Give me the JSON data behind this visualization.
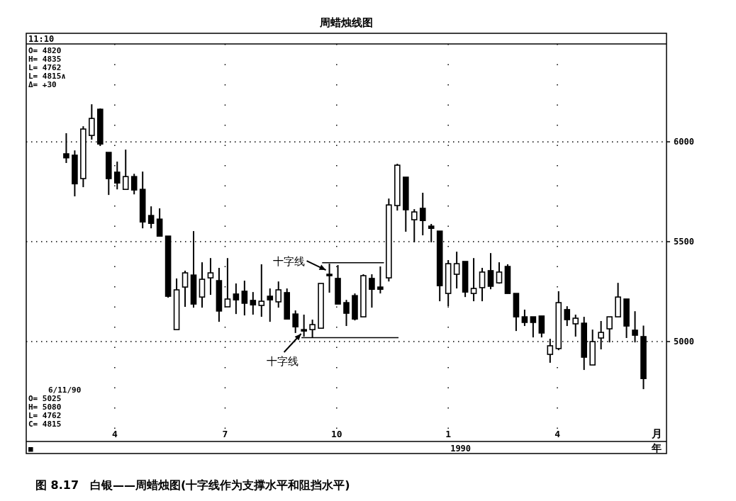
{
  "chart_data": {
    "type": "candlestick",
    "title": "周蜡烛线图",
    "xlabel": "月",
    "xlim": [
      "1989-01-18",
      "1990-06-30"
    ],
    "xticks": [
      {
        "value": "1989-04-01",
        "label": "4"
      },
      {
        "value": "1989-07-01",
        "label": "7"
      },
      {
        "value": "1989-10-01",
        "label": "10"
      },
      {
        "value": "1990-01-01",
        "label": "1"
      },
      {
        "value": "1990-04-01",
        "label": "4"
      }
    ],
    "ylim": [
      4500,
      6490
    ],
    "yticks": [
      5000,
      5500,
      6000
    ],
    "grid": true,
    "series": [
      {
        "color": "#000000",
        "x": [
          "1989-02-20",
          "1989-02-27",
          "1989-03-06",
          "1989-03-13",
          "1989-03-20",
          "1989-03-27",
          "1989-04-03",
          "1989-04-10",
          "1989-04-17",
          "1989-04-24",
          "1989-05-01",
          "1989-05-08",
          "1989-05-15",
          "1989-05-22",
          "1989-05-29",
          "1989-06-05",
          "1989-06-12",
          "1989-06-19",
          "1989-06-26",
          "1989-07-03",
          "1989-07-10",
          "1989-07-17",
          "1989-07-24",
          "1989-07-31",
          "1989-08-07",
          "1989-08-14",
          "1989-08-21",
          "1989-08-28",
          "1989-09-04",
          "1989-09-11",
          "1989-09-18",
          "1989-09-25",
          "1989-10-02",
          "1989-10-09",
          "1989-10-16",
          "1989-10-23",
          "1989-10-30",
          "1989-11-06",
          "1989-11-13",
          "1989-11-20",
          "1989-11-27",
          "1989-12-04",
          "1989-12-11",
          "1989-12-18",
          "1989-12-25",
          "1990-01-01",
          "1990-01-08",
          "1990-01-15",
          "1990-01-22",
          "1990-01-29",
          "1990-02-05",
          "1990-02-12",
          "1990-02-19",
          "1990-02-26",
          "1990-03-05",
          "1990-03-12",
          "1990-03-19",
          "1990-03-26",
          "1990-04-02",
          "1990-04-09",
          "1990-04-16",
          "1990-04-23",
          "1990-04-30",
          "1990-05-07",
          "1990-05-14",
          "1990-05-21",
          "1990-05-28",
          "1990-06-04",
          "1990-06-11"
        ],
        "ohlc": [
          [
            5940,
            6043,
            5894,
            5920
          ],
          [
            5933,
            5957,
            5727,
            5790
          ],
          [
            5816,
            6078,
            5773,
            6064
          ],
          [
            6032,
            6188,
            6011,
            6117
          ],
          [
            6163,
            6167,
            5979,
            5989
          ],
          [
            5947,
            5947,
            5734,
            5816
          ],
          [
            5848,
            5901,
            5762,
            5794
          ],
          [
            5762,
            5961,
            5762,
            5826
          ],
          [
            5826,
            5840,
            5737,
            5759
          ],
          [
            5762,
            5851,
            5567,
            5599
          ],
          [
            5631,
            5677,
            5567,
            5592
          ],
          [
            5613,
            5667,
            5528,
            5528
          ],
          [
            5528,
            5528,
            5220,
            5227
          ],
          [
            5060,
            5316,
            5060,
            5259
          ],
          [
            5273,
            5355,
            5174,
            5344
          ],
          [
            5333,
            5553,
            5170,
            5188
          ],
          [
            5223,
            5397,
            5170,
            5312
          ],
          [
            5319,
            5418,
            5234,
            5344
          ],
          [
            5305,
            5369,
            5099,
            5153
          ],
          [
            5174,
            5418,
            5174,
            5213
          ],
          [
            5238,
            5291,
            5138,
            5209
          ],
          [
            5252,
            5305,
            5131,
            5192
          ],
          [
            5206,
            5248,
            5135,
            5184
          ],
          [
            5181,
            5387,
            5124,
            5202
          ],
          [
            5227,
            5266,
            5099,
            5209
          ],
          [
            5199,
            5301,
            5170,
            5259
          ],
          [
            5245,
            5266,
            5113,
            5113
          ],
          [
            5138,
            5156,
            5043,
            5074
          ],
          [
            5060,
            5135,
            5025,
            5055
          ],
          [
            5060,
            5110,
            5018,
            5085
          ],
          [
            5067,
            5291,
            5067,
            5291
          ],
          [
            5337,
            5390,
            5245,
            5330
          ],
          [
            5316,
            5383,
            5188,
            5188
          ],
          [
            5195,
            5209,
            5078,
            5142
          ],
          [
            5230,
            5241,
            5106,
            5113
          ],
          [
            5124,
            5337,
            5124,
            5330
          ],
          [
            5316,
            5337,
            5170,
            5262
          ],
          [
            5273,
            5376,
            5241,
            5262
          ],
          [
            5319,
            5716,
            5301,
            5684
          ],
          [
            5681,
            5890,
            5656,
            5883
          ],
          [
            5823,
            5823,
            5550,
            5660
          ],
          [
            5610,
            5663,
            5497,
            5649
          ],
          [
            5667,
            5745,
            5532,
            5606
          ],
          [
            5578,
            5589,
            5497,
            5567
          ],
          [
            5553,
            5553,
            5202,
            5280
          ],
          [
            5241,
            5408,
            5177,
            5390
          ],
          [
            5337,
            5450,
            5266,
            5390
          ],
          [
            5401,
            5401,
            5223,
            5248
          ],
          [
            5241,
            5418,
            5202,
            5266
          ],
          [
            5270,
            5369,
            5202,
            5348
          ],
          [
            5355,
            5443,
            5262,
            5277
          ],
          [
            5294,
            5397,
            5290,
            5348
          ],
          [
            5376,
            5387,
            5241,
            5241
          ],
          [
            5241,
            5241,
            5053,
            5124
          ],
          [
            5124,
            5160,
            5078,
            5096
          ],
          [
            5124,
            5124,
            5021,
            5096
          ],
          [
            5128,
            5128,
            5021,
            5043
          ],
          [
            4936,
            5014,
            4894,
            4979
          ],
          [
            4965,
            5252,
            4957,
            5195
          ],
          [
            5160,
            5177,
            5078,
            5110
          ],
          [
            5089,
            5135,
            5025,
            5117
          ],
          [
            5092,
            5124,
            4858,
            4922
          ],
          [
            4883,
            5060,
            4883,
            5000
          ],
          [
            5018,
            5103,
            4961,
            5046
          ],
          [
            5064,
            5124,
            4996,
            5124
          ],
          [
            5124,
            5294,
            5124,
            5223
          ],
          [
            5213,
            5213,
            5018,
            5078
          ],
          [
            5057,
            5152,
            4996,
            5032
          ],
          [
            5025,
            5080,
            4762,
            4815
          ]
        ]
      },
      {
        "type": "line",
        "color": "#000000",
        "x": [
          "1989-09-19",
          "1989-11-09"
        ],
        "values": [
          5395,
          5395
        ]
      },
      {
        "type": "line",
        "color": "#000000",
        "x": [
          "1989-09-02",
          "1989-11-21"
        ],
        "values": [
          5020,
          5020
        ]
      }
    ],
    "annotations": [
      "11:10",
      "O= 4820",
      "H= 4835",
      "L= 4762",
      "L= 4815∧",
      "Δ=  +30",
      "6/11/90",
      "O= 5025",
      "H= 5080",
      "L= 4762",
      "C= 4815",
      "■",
      "1990",
      "年",
      {
        "text": "十字线",
        "x": "1989-09-25",
        "y": 5390
      },
      {
        "text": "十字线",
        "x": "1989-09-04",
        "y": 5025
      },
      "图 8.17　白银——周蜡烛图(十字线作为支撑水平和阻挡水平)"
    ]
  }
}
